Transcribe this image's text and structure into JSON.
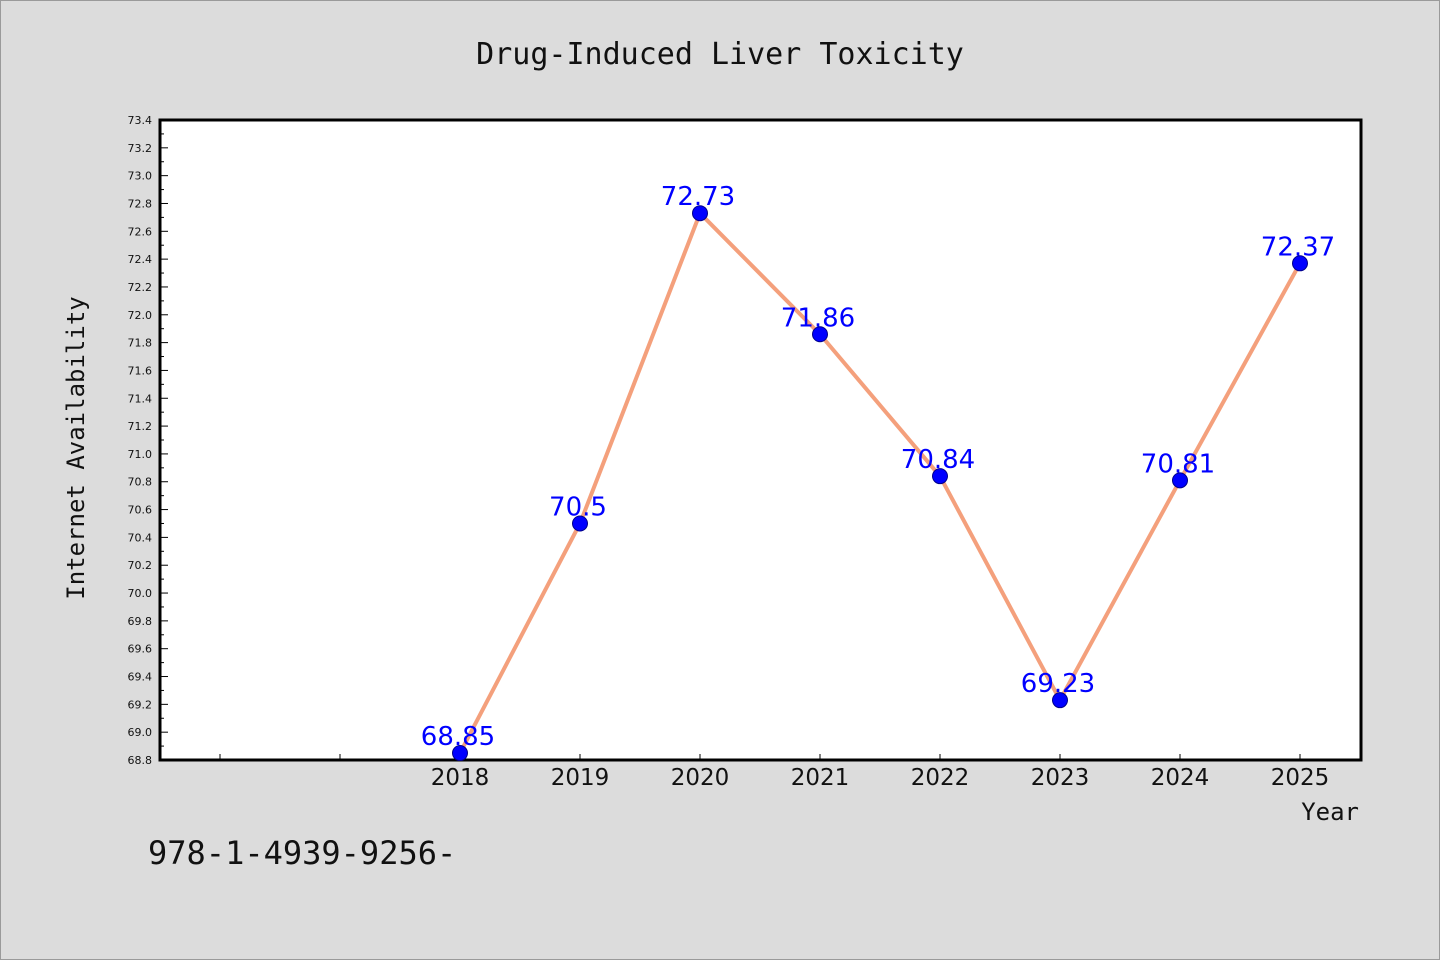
{
  "chart_data": {
    "type": "line",
    "title": "Drug-Induced Liver Toxicity",
    "xlabel": "Year",
    "ylabel": "Internet Availability",
    "categories": [
      "2018",
      "2019",
      "2020",
      "2021",
      "2022",
      "2023",
      "2024",
      "2025"
    ],
    "series": [
      {
        "values": [
          68.85,
          70.5,
          72.73,
          71.86,
          70.84,
          69.23,
          70.81,
          72.37
        ],
        "labels": [
          "68.85",
          "70.5",
          "72.73",
          "71.86",
          "70.84",
          "69.23",
          "70.81",
          "72.37"
        ],
        "line_color": "#f4a07c",
        "marker_color": "#0000ff"
      }
    ],
    "ylim": [
      68.8,
      73.4
    ],
    "yticks": [
      "68.8",
      "69.0",
      "69.2",
      "69.4",
      "69.6",
      "69.8",
      "70.0",
      "70.2",
      "70.4",
      "70.6",
      "70.8",
      "71.0",
      "71.2",
      "71.4",
      "71.6",
      "71.8",
      "72.0",
      "72.2",
      "72.4",
      "72.6",
      "72.8",
      "73.0",
      "73.2",
      "73.4"
    ],
    "grid": false,
    "legend": "none"
  },
  "footer_text": "978-1-4939-9256-",
  "colors": {
    "background": "#dcdcdc",
    "plot_background": "#ffffff",
    "line": "#f4a07c",
    "marker": "#0000ff",
    "data_label": "#0000ff"
  }
}
